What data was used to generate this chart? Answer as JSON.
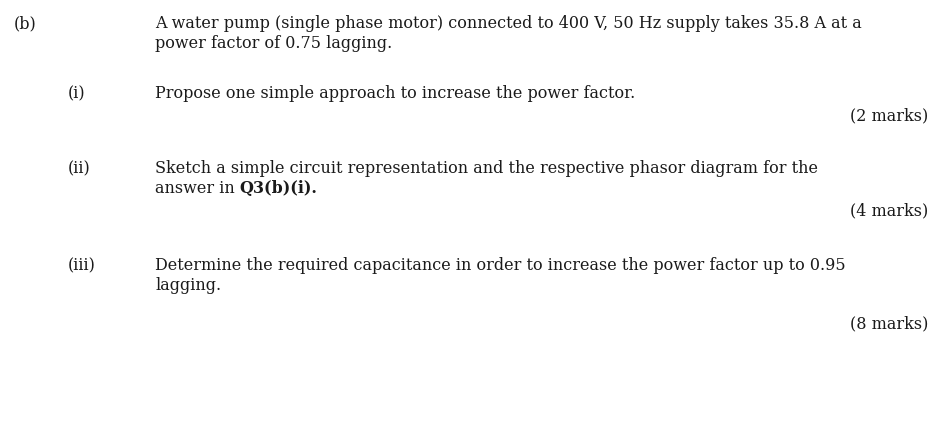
{
  "background_color": "#ffffff",
  "text_color": "#1a1a1a",
  "fig_width": 9.44,
  "fig_height": 4.3,
  "dpi": 100,
  "part_b_label": "(b)",
  "part_b_text_line1": "A water pump (single phase motor) connected to 400 V, 50 Hz supply takes 35.8 A at a",
  "part_b_text_line2": "power factor of 0.75 lagging.",
  "part_i_label": "(i)",
  "part_i_text": "Propose one simple approach to increase the power factor.",
  "part_i_marks": "(2 marks)",
  "part_ii_label": "(ii)",
  "part_ii_text_line1": "Sketch a simple circuit representation and the respective phasor diagram for the",
  "part_ii_text_line2_plain": "answer in ",
  "part_ii_text_line2_bold": "Q3(b)(i).",
  "part_ii_marks": "(4 marks)",
  "part_iii_label": "(iii)",
  "part_iii_text_line1": "Determine the required capacitance in order to increase the power factor up to 0.95",
  "part_iii_text_line2": "lagging.",
  "part_iii_marks": "(8 marks)",
  "font_size_main": 11.5,
  "font_family": "DejaVu Serif"
}
